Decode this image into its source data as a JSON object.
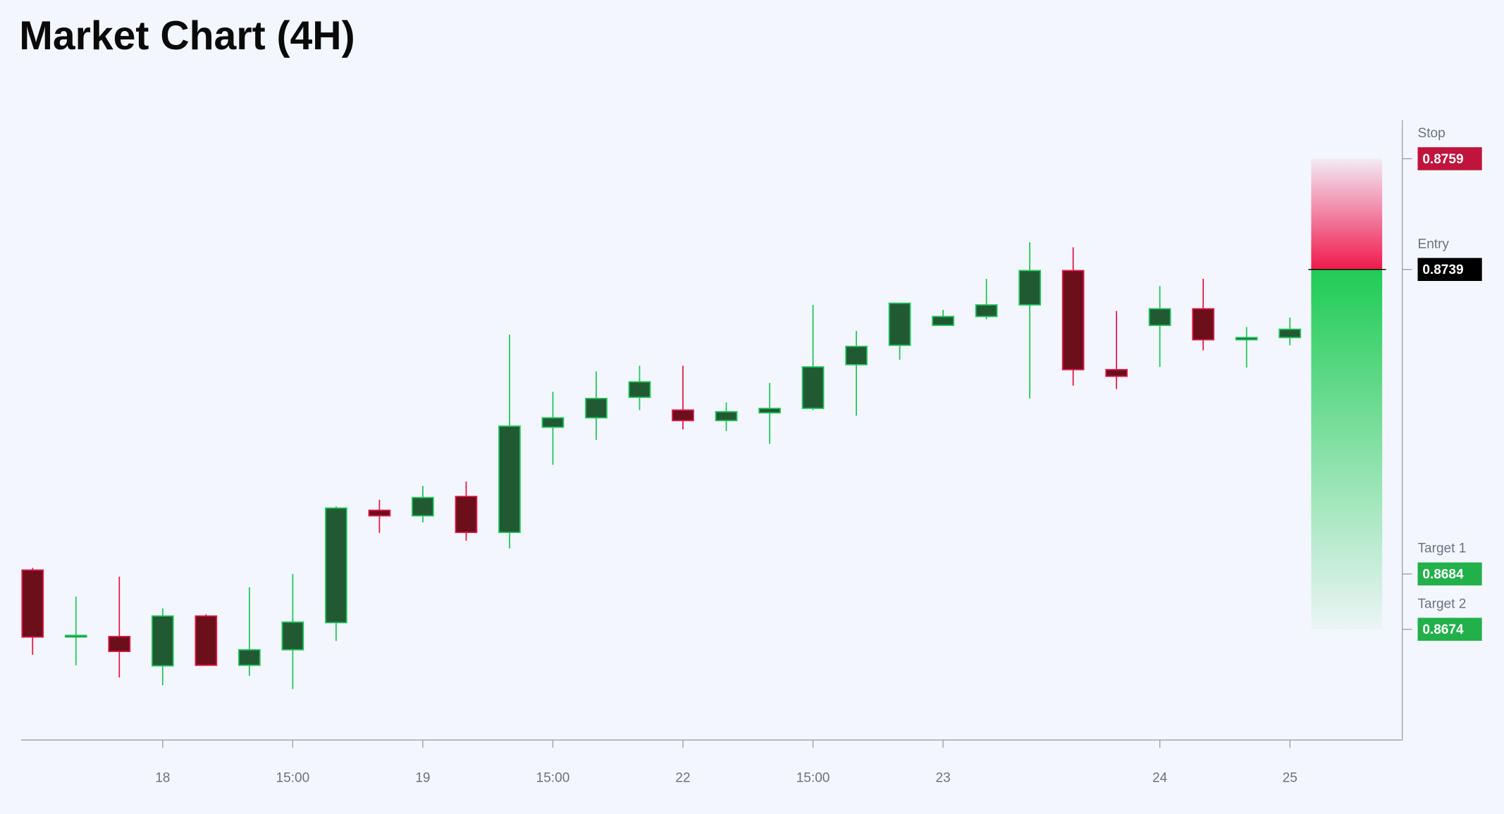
{
  "chart_data": {
    "type": "candlestick",
    "title": "Market Chart (4H)",
    "categories": [
      null,
      null,
      null,
      "18",
      null,
      null,
      "15:00",
      null,
      null,
      "19",
      null,
      null,
      "15:00",
      null,
      null,
      "22",
      null,
      null,
      "15:00",
      null,
      null,
      "23",
      null,
      null,
      null,
      null,
      "24",
      null,
      null,
      "25"
    ],
    "open": [
      0.86847,
      0.86726,
      0.86727,
      0.86674,
      0.86764,
      0.86675,
      0.86703,
      0.86752,
      0.86955,
      0.86945,
      0.8698,
      0.86915,
      0.87105,
      0.87122,
      0.87159,
      0.87136,
      0.87117,
      0.87131,
      0.87139,
      0.87218,
      0.87253,
      0.87289,
      0.87305,
      0.87326,
      0.87388,
      0.87209,
      0.87289,
      0.87319,
      0.87263,
      0.87267
    ],
    "high": [
      0.86851,
      0.86799,
      0.86835,
      0.86778,
      0.86767,
      0.86816,
      0.8684,
      0.86962,
      0.86974,
      0.86999,
      0.87007,
      0.87272,
      0.87169,
      0.87206,
      0.87216,
      0.87216,
      0.8715,
      0.87185,
      0.87326,
      0.87279,
      0.87329,
      0.87317,
      0.87373,
      0.87439,
      0.8743,
      0.87315,
      0.8736,
      0.87373,
      0.87286,
      0.87303
    ],
    "low": [
      0.86694,
      0.86675,
      0.86653,
      0.86639,
      0.86675,
      0.86656,
      0.86632,
      0.86719,
      0.86914,
      0.86933,
      0.869,
      0.86886,
      0.87037,
      0.87082,
      0.87136,
      0.87101,
      0.87098,
      0.87075,
      0.87136,
      0.87126,
      0.87227,
      0.87289,
      0.873,
      0.87157,
      0.8718,
      0.87174,
      0.87214,
      0.87244,
      0.87213,
      0.87253
    ],
    "close": [
      0.86726,
      0.86729,
      0.867,
      0.86764,
      0.86675,
      0.86703,
      0.86753,
      0.86959,
      0.86945,
      0.86978,
      0.86915,
      0.87107,
      0.87122,
      0.87157,
      0.87187,
      0.87117,
      0.87133,
      0.87139,
      0.87214,
      0.87251,
      0.87329,
      0.87305,
      0.87326,
      0.87388,
      0.87209,
      0.87197,
      0.87319,
      0.87263,
      0.87267,
      0.87282
    ],
    "up_color": "#22c55e",
    "down_color": "#e0194b",
    "ylim": [
      0.8654,
      0.8766
    ],
    "levels": [
      {
        "name": "Stop",
        "value": 0.8759,
        "color": "#c0143c"
      },
      {
        "name": "Entry",
        "value": 0.8739,
        "color": "#000000"
      },
      {
        "name": "Target 1",
        "value": 0.8684,
        "color": "#22b04b"
      },
      {
        "name": "Target 2",
        "value": 0.8674,
        "color": "#22b04b"
      }
    ]
  }
}
